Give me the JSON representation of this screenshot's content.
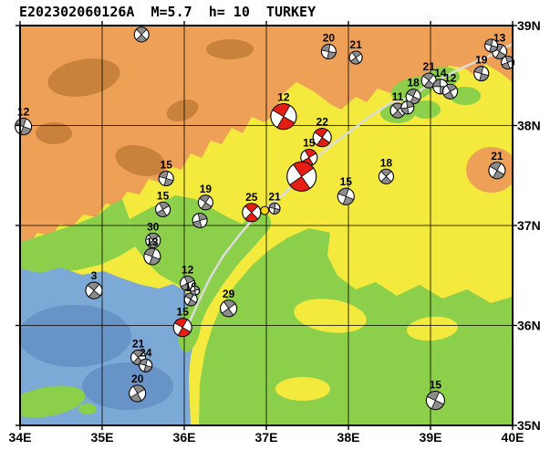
{
  "title": "E202302060126A  M=5.7  h= 10  TURKEY",
  "map": {
    "lon_min": 34,
    "lon_max": 40,
    "lat_min": 35,
    "lat_max": 39,
    "grid_lons": [
      35,
      36,
      37,
      38,
      39
    ],
    "grid_lats": [
      36,
      37,
      38
    ],
    "x_labels": [
      {
        "lon": 34,
        "text": "34E"
      },
      {
        "lon": 35,
        "text": "35E"
      },
      {
        "lon": 36,
        "text": "36E"
      },
      {
        "lon": 37,
        "text": "37E"
      },
      {
        "lon": 38,
        "text": "38E"
      },
      {
        "lon": 39,
        "text": "39E"
      },
      {
        "lon": 40,
        "text": "40E"
      }
    ],
    "y_labels": [
      {
        "lat": 39,
        "text": "39N"
      },
      {
        "lat": 38,
        "text": "38N"
      },
      {
        "lat": 37,
        "text": "37N"
      },
      {
        "lat": 36,
        "text": "36N"
      },
      {
        "lat": 35,
        "text": "35N"
      }
    ]
  },
  "colors": {
    "gray": "#8c8c8c",
    "red": "#e41e14",
    "epicenter": "#ffd700"
  },
  "epicenter": {
    "lon": 36.98,
    "lat": 37.15
  },
  "events": [
    {
      "day": "12",
      "lon": 34.04,
      "lat": 37.99,
      "r": 9,
      "color": "gray",
      "rot": 20
    },
    {
      "day": "",
      "lon": 35.48,
      "lat": 38.91,
      "r": 8,
      "color": "gray",
      "rot": 45
    },
    {
      "day": "20",
      "lon": 37.76,
      "lat": 38.74,
      "r": 8,
      "color": "gray",
      "rot": 10
    },
    {
      "day": "21",
      "lon": 38.09,
      "lat": 38.68,
      "r": 7,
      "color": "gray",
      "rot": 55
    },
    {
      "day": "13",
      "lon": 39.84,
      "lat": 38.74,
      "r": 8,
      "color": "gray",
      "rot": 30
    },
    {
      "day": "",
      "lon": 39.94,
      "lat": 38.63,
      "r": 7,
      "color": "gray",
      "rot": 70
    },
    {
      "day": "",
      "lon": 39.74,
      "lat": 38.8,
      "r": 7,
      "color": "gray",
      "rot": 15
    },
    {
      "day": "19",
      "lon": 39.62,
      "lat": 38.52,
      "r": 8,
      "color": "gray",
      "rot": 15
    },
    {
      "day": "21",
      "lon": 38.98,
      "lat": 38.45,
      "r": 8,
      "color": "gray",
      "rot": 40
    },
    {
      "day": "14",
      "lon": 39.12,
      "lat": 38.39,
      "r": 8,
      "color": "gray",
      "rot": 0
    },
    {
      "day": "12",
      "lon": 39.24,
      "lat": 38.34,
      "r": 8,
      "color": "gray",
      "rot": 60
    },
    {
      "day": "18",
      "lon": 38.79,
      "lat": 38.29,
      "r": 8,
      "color": "gray",
      "rot": 25
    },
    {
      "day": "11",
      "lon": 38.6,
      "lat": 38.15,
      "r": 8,
      "color": "gray",
      "rot": 45
    },
    {
      "day": "",
      "lon": 38.72,
      "lat": 38.18,
      "r": 7,
      "color": "gray",
      "rot": 80
    },
    {
      "day": "12",
      "lon": 37.21,
      "lat": 38.09,
      "r": 14,
      "color": "red",
      "rot": 30
    },
    {
      "day": "22",
      "lon": 37.68,
      "lat": 37.88,
      "r": 10,
      "color": "red",
      "rot": 35
    },
    {
      "day": "15",
      "lon": 37.52,
      "lat": 37.68,
      "r": 9,
      "color": "red",
      "rot": 60
    },
    {
      "day": "",
      "lon": 37.43,
      "lat": 37.49,
      "r": 16,
      "color": "red",
      "rot": 55
    },
    {
      "day": "15",
      "lon": 37.97,
      "lat": 37.29,
      "r": 9,
      "color": "gray",
      "rot": 20
    },
    {
      "day": "18",
      "lon": 38.46,
      "lat": 37.49,
      "r": 8,
      "color": "gray",
      "rot": 45
    },
    {
      "day": "21",
      "lon": 39.81,
      "lat": 37.55,
      "r": 9,
      "color": "gray",
      "rot": 30
    },
    {
      "day": "15",
      "lon": 35.78,
      "lat": 37.47,
      "r": 8,
      "color": "gray",
      "rot": 15
    },
    {
      "day": "15",
      "lon": 35.74,
      "lat": 37.16,
      "r": 8,
      "color": "gray",
      "rot": 60
    },
    {
      "day": "19",
      "lon": 36.26,
      "lat": 37.23,
      "r": 8,
      "color": "gray",
      "rot": 35
    },
    {
      "day": "",
      "lon": 36.19,
      "lat": 37.05,
      "r": 8,
      "color": "gray",
      "rot": 75
    },
    {
      "day": "25",
      "lon": 36.82,
      "lat": 37.13,
      "r": 10,
      "color": "red",
      "rot": 45
    },
    {
      "day": "21",
      "lon": 37.1,
      "lat": 37.17,
      "r": 6,
      "color": "gray",
      "rot": 10
    },
    {
      "day": "30",
      "lon": 35.62,
      "lat": 36.85,
      "r": 8,
      "color": "gray",
      "rot": 50
    },
    {
      "day": "13",
      "lon": 35.61,
      "lat": 36.69,
      "r": 9,
      "color": "gray",
      "rot": 20
    },
    {
      "day": "3",
      "lon": 34.9,
      "lat": 36.35,
      "r": 9,
      "color": "gray",
      "rot": 40
    },
    {
      "day": "12",
      "lon": 36.04,
      "lat": 36.42,
      "r": 8,
      "color": "gray",
      "rot": 65
    },
    {
      "day": "16",
      "lon": 36.08,
      "lat": 36.26,
      "r": 7,
      "color": "gray",
      "rot": 30
    },
    {
      "day": "",
      "lon": 36.13,
      "lat": 36.35,
      "r": 5,
      "color": "gray",
      "rot": 80
    },
    {
      "day": "29",
      "lon": 36.54,
      "lat": 36.17,
      "r": 9,
      "color": "gray",
      "rot": 55
    },
    {
      "day": "15",
      "lon": 35.98,
      "lat": 35.98,
      "r": 10,
      "color": "red",
      "rot": 30
    },
    {
      "day": "21",
      "lon": 35.44,
      "lat": 35.68,
      "r": 8,
      "color": "gray",
      "rot": 45
    },
    {
      "day": "24",
      "lon": 35.53,
      "lat": 35.6,
      "r": 7,
      "color": "gray",
      "rot": 15
    },
    {
      "day": "20",
      "lon": 35.43,
      "lat": 35.32,
      "r": 9,
      "color": "gray",
      "rot": 60
    },
    {
      "day": "15",
      "lon": 39.06,
      "lat": 35.25,
      "r": 10,
      "color": "gray",
      "rot": 25
    }
  ]
}
